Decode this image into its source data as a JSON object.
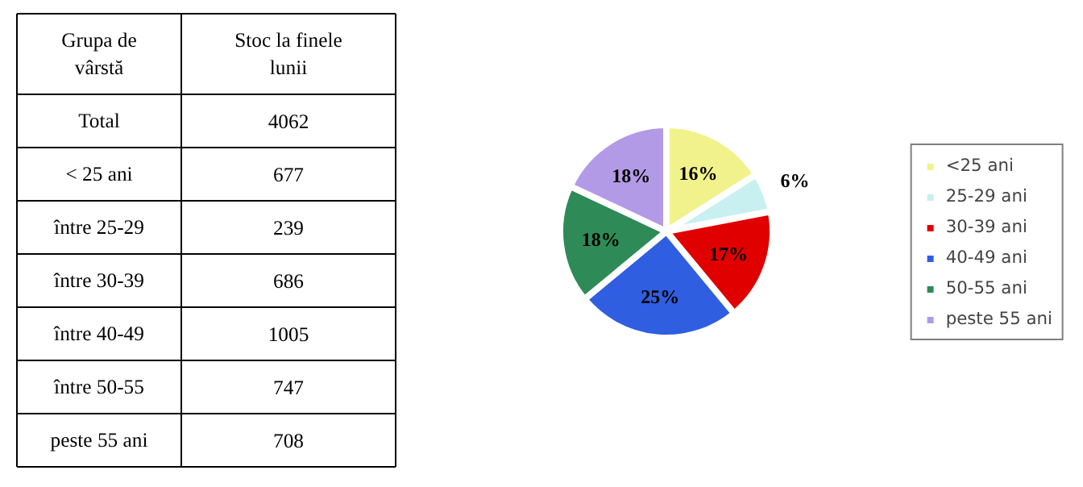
{
  "chart_data": [
    {
      "type": "other",
      "xlabel": "Grupa de vârstă",
      "ylabel": "Stoc la finele lunii",
      "categories": [
        "Total",
        "< 25 ani",
        "între 25-29",
        "între 30-39",
        "între 40-49",
        "între 50-55",
        "peste 55 ani"
      ],
      "values": [
        4062,
        677,
        239,
        686,
        1005,
        747,
        708
      ],
      "data_labels": true
    },
    {
      "type": "pie",
      "categories": [
        "<25 ani",
        "25-29 ani",
        "30-39 ani",
        "40-49 ani",
        "50-55 ani",
        "peste 55 ani"
      ],
      "values": [
        16,
        6,
        17,
        25,
        18,
        18
      ],
      "colors": [
        "#f2f28c",
        "#c8f0f0",
        "#e00000",
        "#2f5fe0",
        "#2e8b57",
        "#b39ae6"
      ],
      "value_labels": [
        "16%",
        "6%",
        "17%",
        "25%",
        "18%",
        "18%"
      ],
      "legend": "right"
    }
  ]
}
